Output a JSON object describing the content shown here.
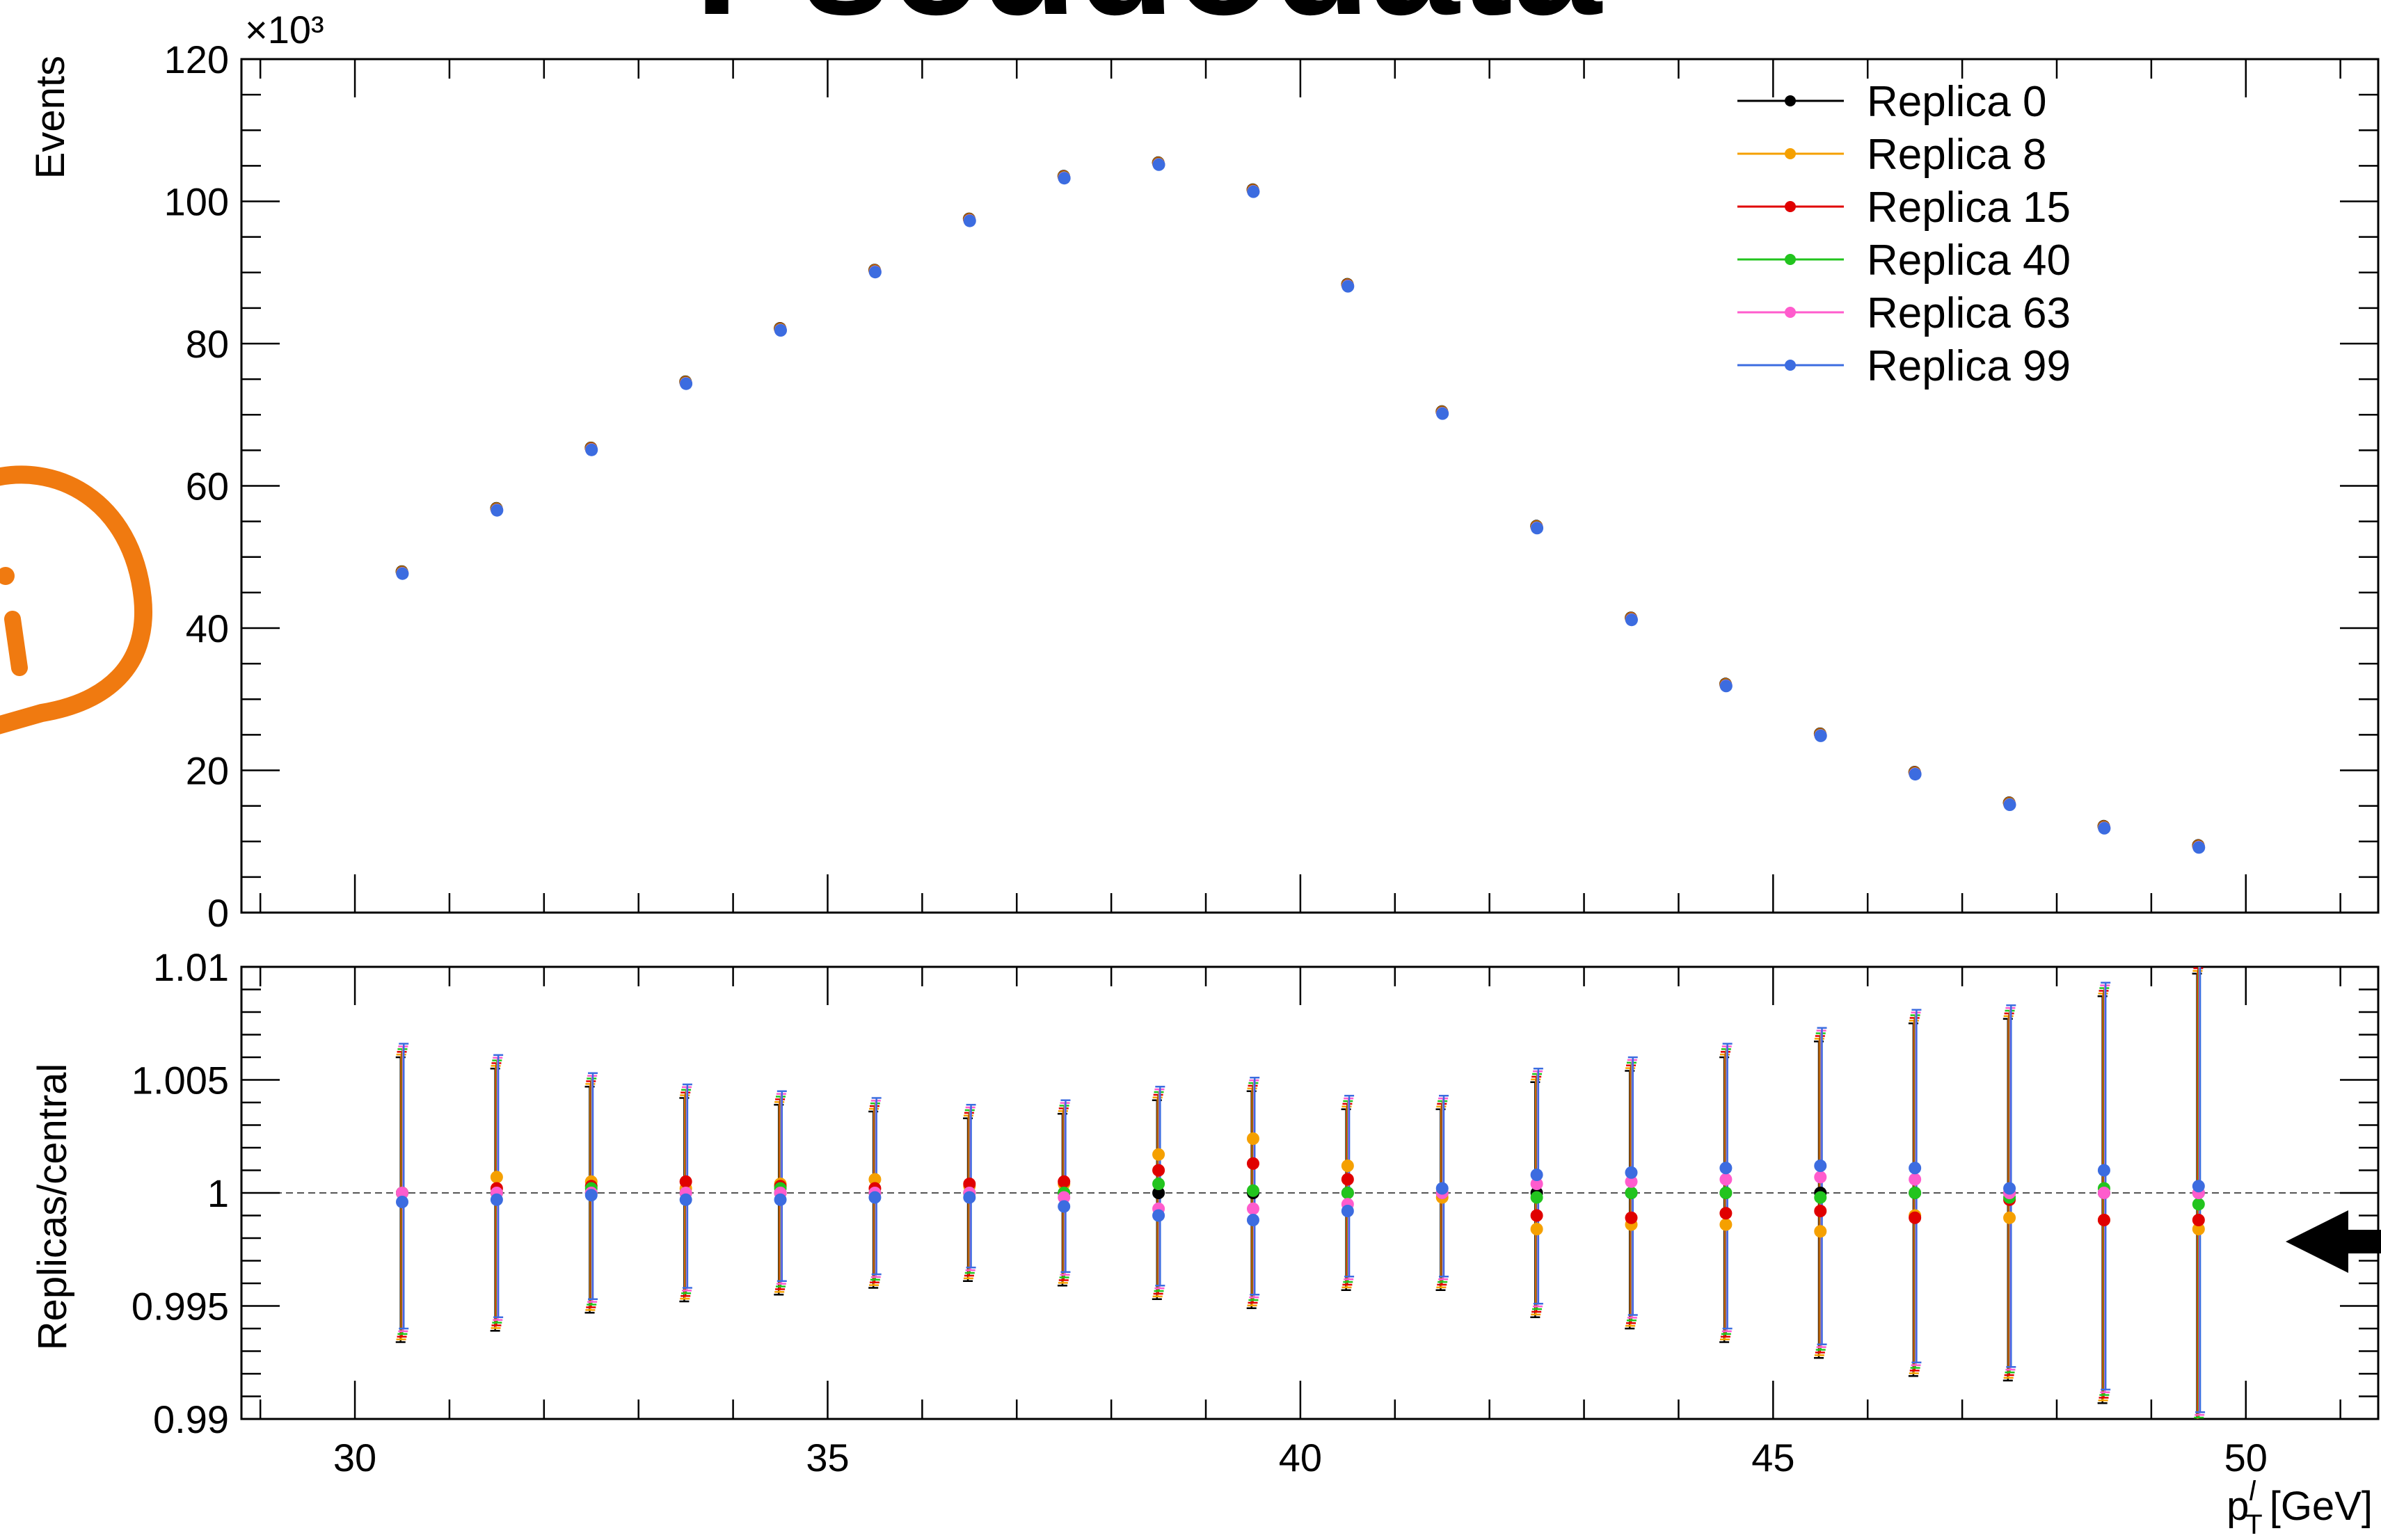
{
  "title": "Pseudodata",
  "chart_data": [
    {
      "type": "scatter",
      "panel": "upper",
      "ylabel": "Events",
      "y_multiplier_label": "×10³",
      "ylim": [
        0,
        120
      ],
      "xlim": [
        28.8,
        51.4
      ],
      "y_ticks": [
        "0",
        "20",
        "40",
        "60",
        "80",
        "100",
        "120"
      ],
      "x": [
        30.5,
        31.5,
        32.5,
        33.5,
        34.5,
        35.5,
        36.5,
        37.5,
        38.5,
        39.5,
        40.5,
        41.5,
        42.5,
        43.5,
        44.5,
        45.5,
        46.5,
        47.5,
        48.5,
        49.5
      ],
      "values": [
        47.8,
        56.7,
        65.2,
        74.5,
        82.0,
        90.2,
        97.4,
        103.4,
        105.3,
        101.5,
        88.2,
        70.3,
        54.2,
        41.3,
        32.0,
        25.0,
        19.6,
        15.3,
        12.0,
        9.3
      ],
      "legend_position": "top-right",
      "series": [
        {
          "name": "Replica 0",
          "color": "#000000"
        },
        {
          "name": "Replica 8",
          "color": "#f5a000"
        },
        {
          "name": "Replica 15",
          "color": "#e00000"
        },
        {
          "name": "Replica 40",
          "color": "#22c41e"
        },
        {
          "name": "Replica 63",
          "color": "#ff5ccd"
        },
        {
          "name": "Replica 99",
          "color": "#3c6ce0"
        }
      ]
    },
    {
      "type": "scatter",
      "panel": "lower",
      "ylabel": "Replicas/central",
      "xlabel": "[GeV]",
      "xlabel_symbol": "p",
      "xlabel_sup": "l",
      "xlabel_sub": "T",
      "ylim": [
        0.99,
        1.01
      ],
      "xlim": [
        28.8,
        51.4
      ],
      "y_ticks": [
        "0.99",
        "0.995",
        "1",
        "1.005",
        "1.01"
      ],
      "x_ticks": [
        "30",
        "35",
        "40",
        "45",
        "50"
      ],
      "reference_line": 1,
      "x": [
        30.5,
        31.5,
        32.5,
        33.5,
        34.5,
        35.5,
        36.5,
        37.5,
        38.5,
        39.5,
        40.5,
        41.5,
        42.5,
        43.5,
        44.5,
        45.5,
        46.5,
        47.5,
        48.5,
        49.5
      ],
      "err": [
        0.0063,
        0.0058,
        0.005,
        0.0045,
        0.0042,
        0.0039,
        0.0036,
        0.0038,
        0.0044,
        0.0048,
        0.004,
        0.004,
        0.0052,
        0.0057,
        0.0063,
        0.007,
        0.0078,
        0.008,
        0.009,
        0.01
      ],
      "series": [
        {
          "name": "Replica 0",
          "color": "#000000",
          "values": [
            1.0,
            1.0,
            1.0,
            1.0,
            1.0,
            1.0,
            1.0,
            1.0,
            1.0,
            1.0,
            1.0,
            1.0,
            1.0,
            1.0,
            1.0,
            1.0,
            1.0,
            1.0,
            1.0,
            1.0
          ]
        },
        {
          "name": "Replica 8",
          "color": "#f5a000",
          "values": [
            1.0,
            1.0007,
            1.0005,
            1.0002,
            1.0004,
            1.0006,
            1.0003,
            1.0004,
            1.0017,
            1.0024,
            1.0012,
            0.9998,
            0.9984,
            0.9986,
            0.9986,
            0.9983,
            0.999,
            0.9989,
            0.9988,
            0.9984
          ]
        },
        {
          "name": "Replica 15",
          "color": "#e00000",
          "values": [
            1.0,
            1.0002,
            1.0003,
            1.0005,
            1.0003,
            1.0002,
            1.0004,
            1.0005,
            1.001,
            1.0013,
            1.0006,
            1.0,
            0.999,
            0.9989,
            0.9991,
            0.9992,
            0.9989,
            0.9997,
            0.9988,
            0.9988
          ]
        },
        {
          "name": "Replica 40",
          "color": "#22c41e",
          "values": [
            1.0,
            1.0,
            1.0002,
            1.0,
            1.0002,
            1.0,
            1.0,
            1.0,
            1.0004,
            1.0001,
            1.0,
            1.0,
            0.9998,
            1.0,
            1.0,
            0.9998,
            1.0,
            0.9998,
            1.0002,
            0.9995
          ]
        },
        {
          "name": "Replica 63",
          "color": "#ff5ccd",
          "values": [
            1.0,
            1.0,
            1.0,
            1.0,
            1.0,
            1.0,
            1.0,
            0.9998,
            0.9993,
            0.9993,
            0.9995,
            1.0,
            1.0004,
            1.0005,
            1.0006,
            1.0007,
            1.0006,
            1.0,
            1.0,
            1.0
          ]
        },
        {
          "name": "Replica 99",
          "color": "#3c6ce0",
          "values": [
            0.9996,
            0.9997,
            0.9999,
            0.9997,
            0.9997,
            0.9998,
            0.9998,
            0.9994,
            0.999,
            0.9988,
            0.9992,
            1.0002,
            1.0008,
            1.0009,
            1.0011,
            1.0012,
            1.0011,
            1.0002,
            1.001,
            1.0003
          ]
        }
      ]
    }
  ]
}
